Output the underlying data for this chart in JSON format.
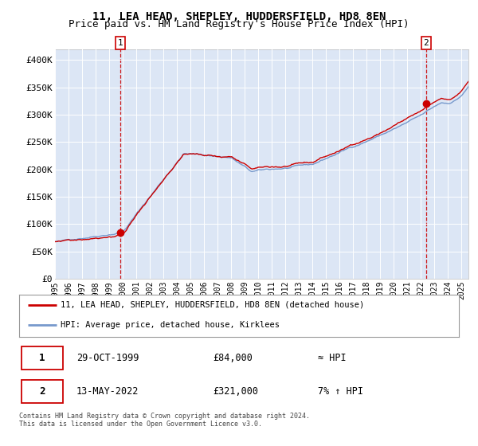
{
  "title": "11, LEA HEAD, SHEPLEY, HUDDERSFIELD, HD8 8EN",
  "subtitle": "Price paid vs. HM Land Registry's House Price Index (HPI)",
  "title_fontsize": 10,
  "subtitle_fontsize": 9,
  "fig_bg_color": "#ffffff",
  "plot_bg_color": "#dce6f5",
  "hpi_color": "#7799cc",
  "price_color": "#cc0000",
  "ylim": [
    0,
    420000
  ],
  "yticks": [
    0,
    50000,
    100000,
    150000,
    200000,
    250000,
    300000,
    350000,
    400000
  ],
  "ytick_labels": [
    "£0",
    "£50K",
    "£100K",
    "£150K",
    "£200K",
    "£250K",
    "£300K",
    "£350K",
    "£400K"
  ],
  "sale1_year": 1999.83,
  "sale1_price": 84000,
  "sale2_year": 2022.37,
  "sale2_price": 321000,
  "legend1": "11, LEA HEAD, SHEPLEY, HUDDERSFIELD, HD8 8EN (detached house)",
  "legend2": "HPI: Average price, detached house, Kirklees",
  "table_row1": [
    "1",
    "29-OCT-1999",
    "£84,000",
    "≈ HPI"
  ],
  "table_row2": [
    "2",
    "13-MAY-2022",
    "£321,000",
    "7% ↑ HPI"
  ],
  "footnote": "Contains HM Land Registry data © Crown copyright and database right 2024.\nThis data is licensed under the Open Government Licence v3.0.",
  "xmin": 1995.0,
  "xmax": 2025.5,
  "xtick_years": [
    1995,
    1996,
    1997,
    1998,
    1999,
    2000,
    2001,
    2002,
    2003,
    2004,
    2005,
    2006,
    2007,
    2008,
    2009,
    2010,
    2011,
    2012,
    2013,
    2014,
    2015,
    2016,
    2017,
    2018,
    2019,
    2020,
    2021,
    2022,
    2023,
    2024,
    2025
  ]
}
